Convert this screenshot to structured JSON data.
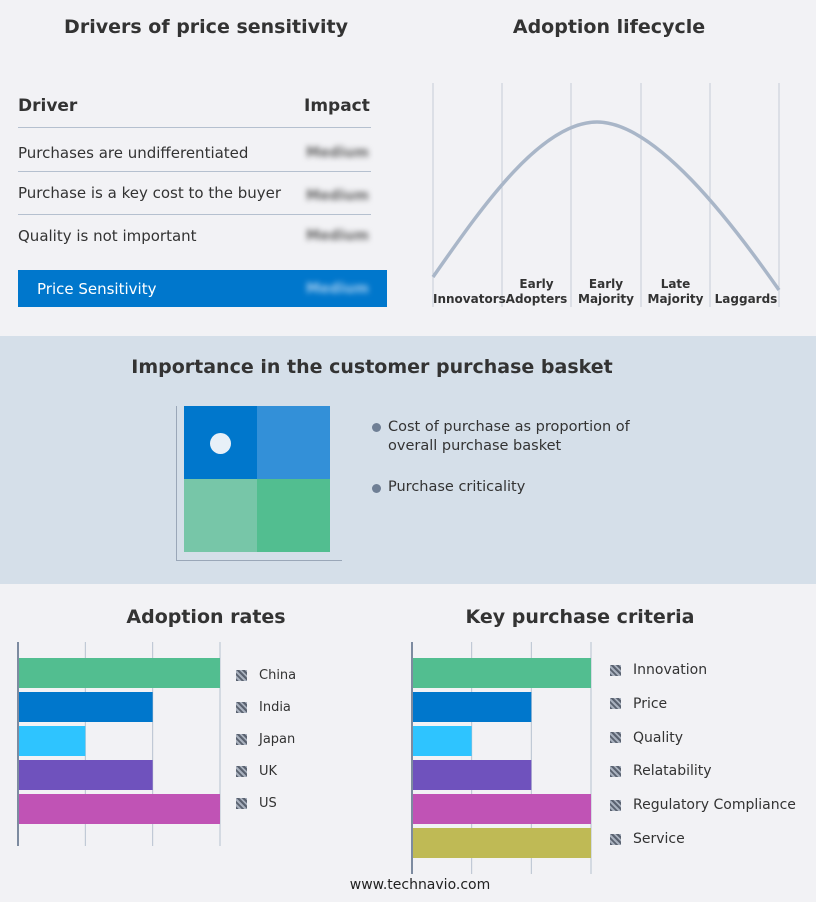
{
  "drivers": {
    "title": "Drivers of price sensitivity",
    "col_driver": "Driver",
    "col_impact": "Impact",
    "rows": [
      {
        "driver": "Purchases are undifferentiated",
        "impact": "Medium"
      },
      {
        "driver": "Purchase is a key cost to the buyer",
        "impact": "Medium"
      },
      {
        "driver": "Quality is not important",
        "impact": "Medium"
      }
    ],
    "summary": {
      "driver": "Price Sensitivity",
      "impact": "Medium"
    },
    "accent": "#0077cc"
  },
  "lifecycle": {
    "title": "Adoption lifecycle",
    "stages": [
      {
        "l1": "",
        "l2": "Innovators"
      },
      {
        "l1": "Early",
        "l2": "Adopters"
      },
      {
        "l1": "Early",
        "l2": "Majority"
      },
      {
        "l1": "Late",
        "l2": "Majority"
      },
      {
        "l1": "",
        "l2": "Laggards"
      }
    ],
    "highlighted_stage": "Early Majority"
  },
  "basket": {
    "title": "Importance in the customer purchase basket",
    "legend": [
      "Cost of purchase as proportion of overall purchase basket",
      "Purchase criticality"
    ],
    "marker_quadrant": "top-left",
    "colors": [
      "#0077cc",
      "#3390d8",
      "#77c6a8",
      "#52be90"
    ]
  },
  "chart_data": [
    {
      "type": "bar",
      "title": "Adoption rates",
      "orientation": "horizontal",
      "categories": [
        "China",
        "India",
        "Japan",
        "UK",
        "US"
      ],
      "values": [
        3,
        2,
        1,
        2,
        3
      ],
      "xlim": [
        0,
        3
      ],
      "grid": true,
      "legend": "right",
      "colors": [
        "#52be90",
        "#0077cc",
        "#2ec4ff",
        "#6f52bd",
        "#c053b5"
      ]
    },
    {
      "type": "bar",
      "title": "Key purchase criteria",
      "orientation": "horizontal",
      "categories": [
        "Innovation",
        "Price",
        "Quality",
        "Relatability",
        "Regulatory Compliance",
        "Service"
      ],
      "values": [
        3,
        2,
        1,
        2,
        3,
        3
      ],
      "xlim": [
        0,
        3
      ],
      "grid": true,
      "legend": "right",
      "colors": [
        "#52be90",
        "#0077cc",
        "#2ec4ff",
        "#6f52bd",
        "#c053b5",
        "#bfba55"
      ]
    }
  ],
  "footer": "www.technavio.com"
}
